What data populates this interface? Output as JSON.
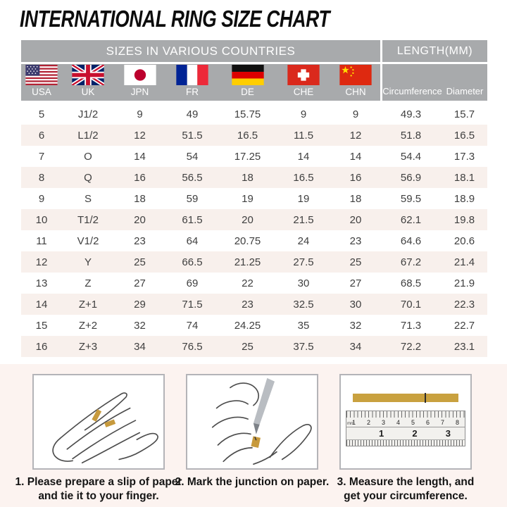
{
  "title": "INTERNATIONAL RING SIZE CHART",
  "chart_data": {
    "type": "table",
    "title": "INTERNATIONAL RING SIZE CHART",
    "group_headers": {
      "countries": "SIZES IN VARIOUS COUNTRIES",
      "length": "LENGTH(MM)"
    },
    "country_columns": [
      {
        "code": "USA",
        "flag": "usa-flag"
      },
      {
        "code": "UK",
        "flag": "uk-flag"
      },
      {
        "code": "JPN",
        "flag": "japan-flag"
      },
      {
        "code": "FR",
        "flag": "france-flag"
      },
      {
        "code": "DE",
        "flag": "germany-flag"
      },
      {
        "code": "CHE",
        "flag": "switzerland-flag"
      },
      {
        "code": "CHN",
        "flag": "china-flag"
      }
    ],
    "length_columns": [
      "Circumference",
      "Diameter"
    ],
    "rows": [
      [
        "5",
        "J1/2",
        "9",
        "49",
        "15.75",
        "9",
        "9",
        "49.3",
        "15.7"
      ],
      [
        "6",
        "L1/2",
        "12",
        "51.5",
        "16.5",
        "11.5",
        "12",
        "51.8",
        "16.5"
      ],
      [
        "7",
        "O",
        "14",
        "54",
        "17.25",
        "14",
        "14",
        "54.4",
        "17.3"
      ],
      [
        "8",
        "Q",
        "16",
        "56.5",
        "18",
        "16.5",
        "16",
        "56.9",
        "18.1"
      ],
      [
        "9",
        "S",
        "18",
        "59",
        "19",
        "19",
        "18",
        "59.5",
        "18.9"
      ],
      [
        "10",
        "T1/2",
        "20",
        "61.5",
        "20",
        "21.5",
        "20",
        "62.1",
        "19.8"
      ],
      [
        "11",
        "V1/2",
        "23",
        "64",
        "20.75",
        "24",
        "23",
        "64.6",
        "20.6"
      ],
      [
        "12",
        "Y",
        "25",
        "66.5",
        "21.25",
        "27.5",
        "25",
        "67.2",
        "21.4"
      ],
      [
        "13",
        "Z",
        "27",
        "69",
        "22",
        "30",
        "27",
        "68.5",
        "21.9"
      ],
      [
        "14",
        "Z+1",
        "29",
        "71.5",
        "23",
        "32.5",
        "30",
        "70.1",
        "22.3"
      ],
      [
        "15",
        "Z+2",
        "32",
        "74",
        "24.25",
        "35",
        "32",
        "71.3",
        "22.7"
      ],
      [
        "16",
        "Z+3",
        "34",
        "76.5",
        "25",
        "37.5",
        "34",
        "72.2",
        "23.1"
      ]
    ]
  },
  "instructions": {
    "step1": {
      "caption": "1. Please prepare a slip of paper\nand tie it to your finger.",
      "illustration": "hand-with-paper-strip"
    },
    "step2": {
      "caption": "2. Mark the junction on paper.",
      "illustration": "pen-marking-finger"
    },
    "step3": {
      "caption": "3. Measure the length, and\nget your circumference.",
      "illustration": "ruler-measuring-strip",
      "ruler": {
        "unit_label": "mm",
        "cm_labels": [
          "1",
          "2",
          "3",
          "4",
          "5",
          "6",
          "7",
          "8"
        ],
        "inch_labels": [
          "1",
          "2",
          "3"
        ]
      }
    }
  },
  "colors": {
    "header_gray": "#a8aaac",
    "row_alt_bg": "#f8f0ec",
    "footer_bg": "#fcf3f0",
    "paper_strip_gold": "#c9a13f",
    "text_dark": "#3f3f3f"
  }
}
